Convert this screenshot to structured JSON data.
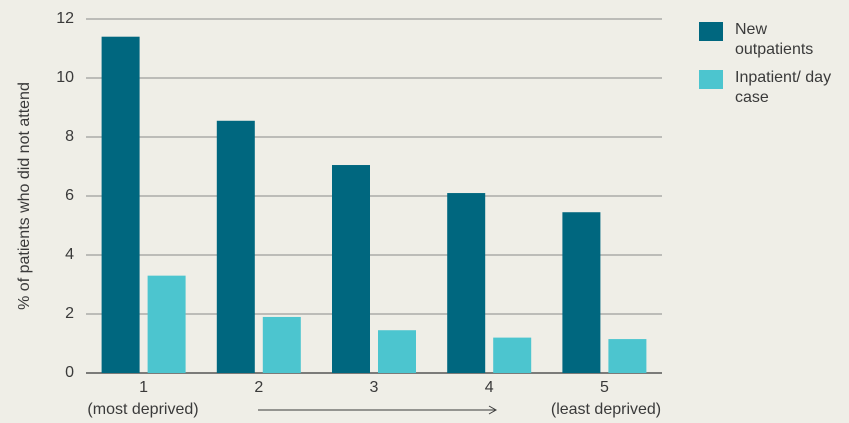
{
  "chart_data": {
    "type": "bar",
    "y_label": "% of patients who did not attend",
    "categories": [
      "1",
      "2",
      "3",
      "4",
      "5"
    ],
    "annotations": [
      "(most deprived)",
      "(least deprived)"
    ],
    "series": [
      {
        "name": "New outpatients",
        "color": "#00677f",
        "values": [
          11.4,
          8.55,
          7.05,
          6.1,
          5.45
        ]
      },
      {
        "name": "Inpatient/ day case",
        "color": "#4cc5cf",
        "values": [
          3.3,
          1.9,
          1.45,
          1.2,
          1.15
        ]
      }
    ],
    "ylim": [
      0,
      12
    ],
    "yticks": [
      0,
      2,
      4,
      6,
      8,
      10,
      12
    ],
    "grid": true,
    "legend": "right"
  }
}
